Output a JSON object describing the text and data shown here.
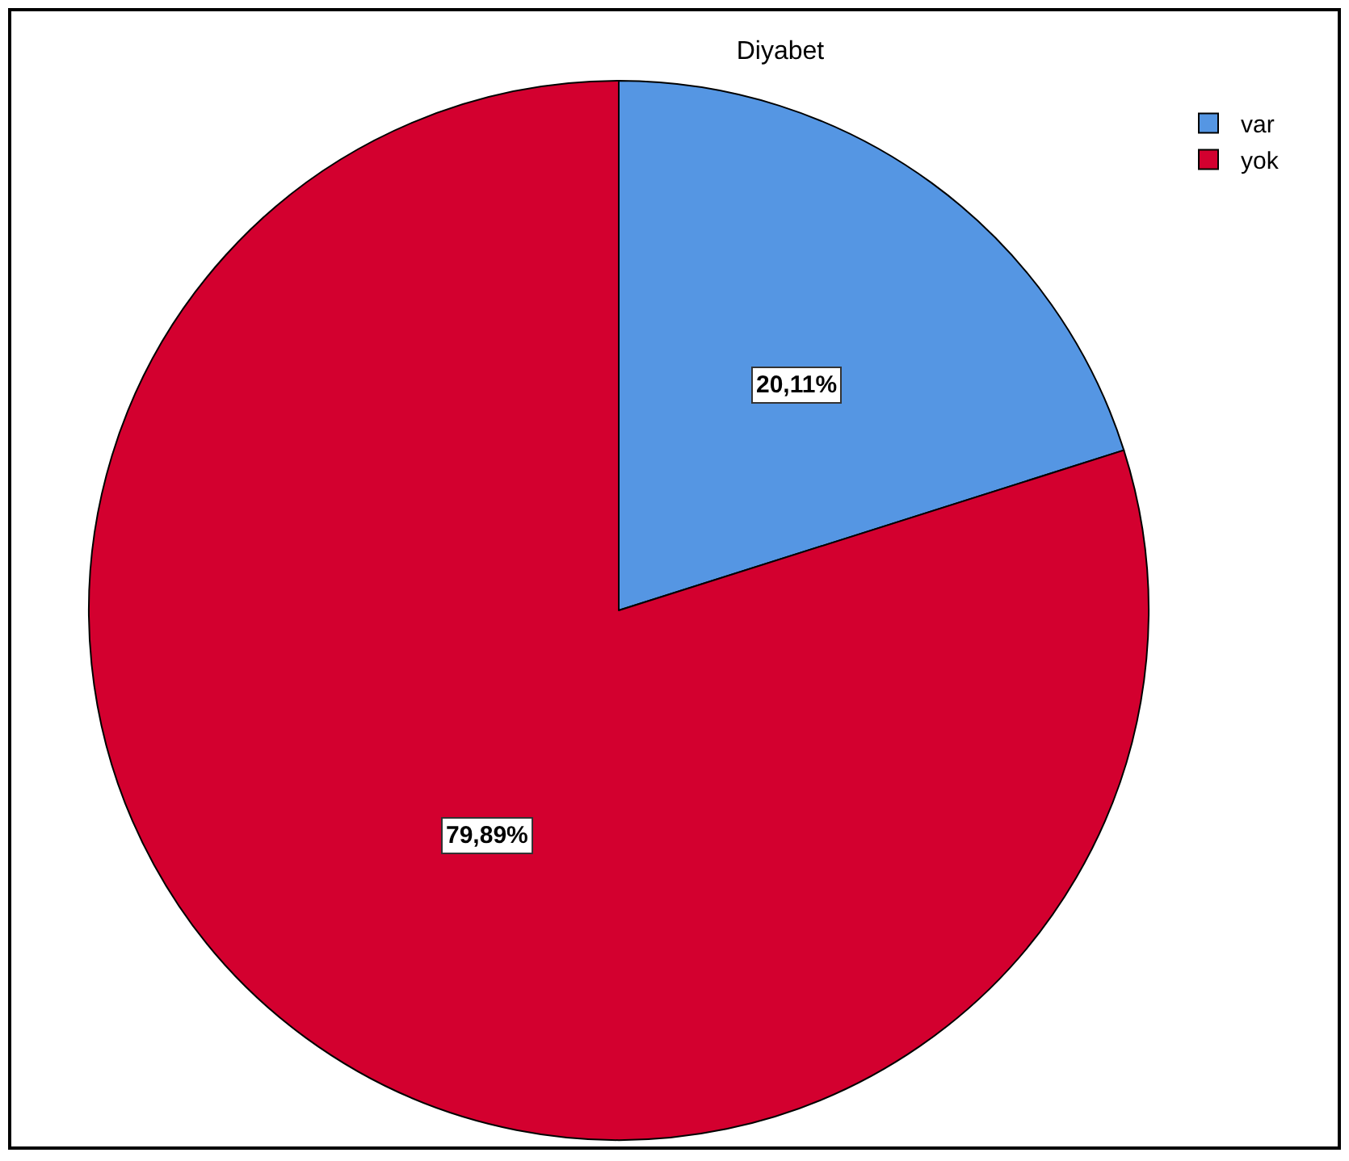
{
  "chart_data": {
    "type": "pie",
    "title": "Diyabet",
    "categories": [
      "var",
      "yok"
    ],
    "values": [
      20.11,
      79.89
    ],
    "colors": [
      "#5596e3",
      "#d3002f"
    ],
    "value_labels": [
      "20,11%",
      "79,89%"
    ],
    "legend": "top right"
  }
}
